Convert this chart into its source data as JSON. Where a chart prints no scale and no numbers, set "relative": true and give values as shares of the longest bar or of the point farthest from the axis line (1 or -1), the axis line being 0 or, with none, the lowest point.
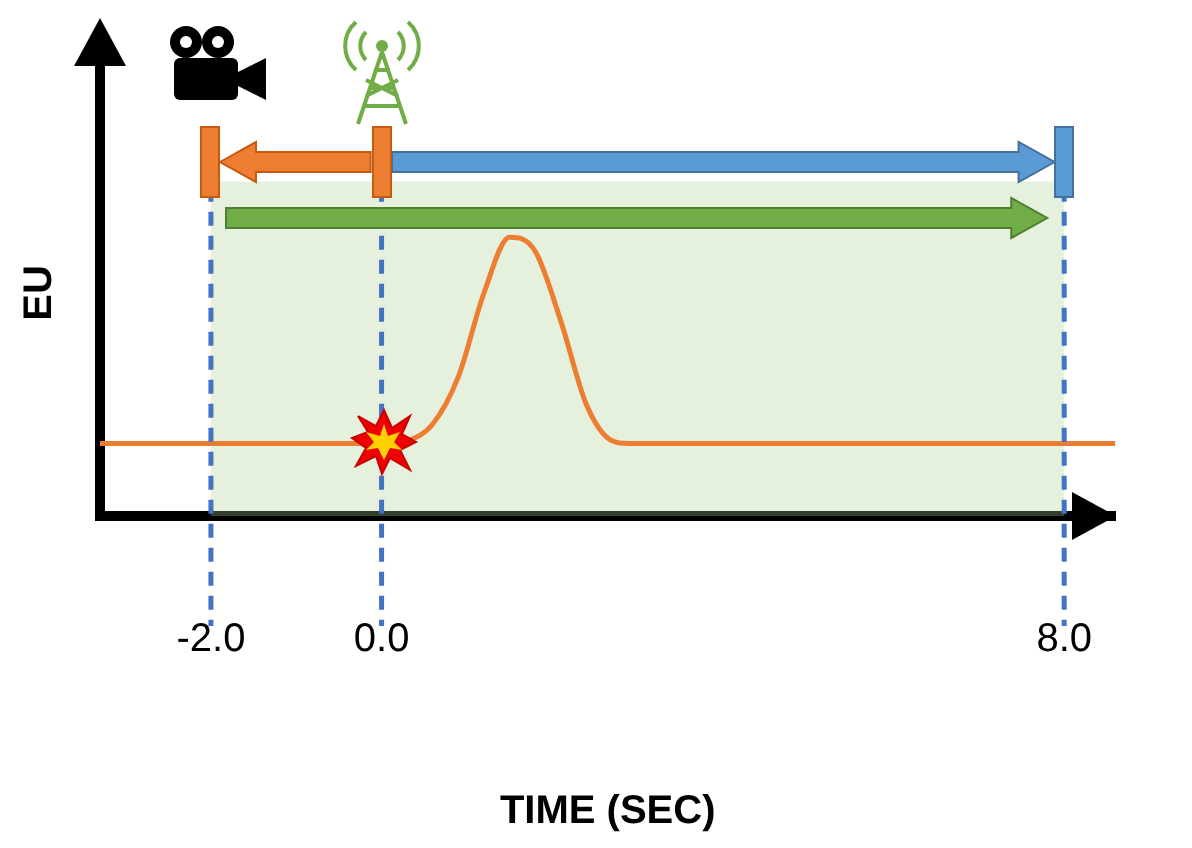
{
  "chart_data": {
    "type": "line",
    "xlabel": "TIME (SEC)",
    "ylabel": "EU",
    "relative": true,
    "x": [
      -3.3,
      0,
      0.3,
      0.6,
      0.9,
      1.2,
      1.5,
      1.8,
      2.1,
      2.4,
      2.7,
      2.9,
      8.6
    ],
    "values": [
      0.26,
      0.26,
      0.27,
      0.33,
      0.5,
      0.8,
      1,
      0.95,
      0.7,
      0.4,
      0.27,
      0.26,
      0.26
    ],
    "color": "#ed7d31",
    "xlim": [
      -3.3,
      8.6
    ],
    "xticks": [
      {
        "value": -2,
        "label": "-2.0"
      },
      {
        "value": 0,
        "label": "0.0"
      },
      {
        "value": 8,
        "label": "8.0"
      }
    ],
    "ref_lines": [
      {
        "axis": "x",
        "value": -2,
        "color": "#4472c4",
        "line_style": "dashed"
      },
      {
        "axis": "x",
        "value": 0,
        "color": "#4472c4",
        "line_style": "dashed"
      },
      {
        "axis": "x",
        "value": 8,
        "color": "#4472c4",
        "line_style": "dashed"
      }
    ],
    "bands": [
      {
        "axis": "x",
        "from": -2,
        "to": 8,
        "color": "#a9d18e"
      }
    ],
    "grid": false,
    "legend": false,
    "marker": "none",
    "line_style": "solid"
  }
}
